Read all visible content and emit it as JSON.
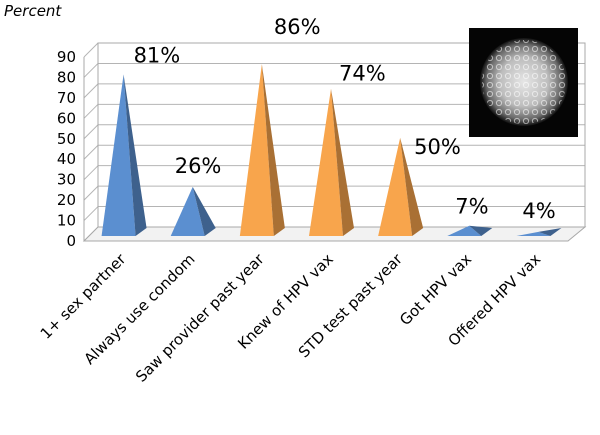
{
  "chart_data": {
    "type": "bar",
    "bar_shape": "pyramid",
    "ylabel": "Percent",
    "ylim": [
      0,
      90
    ],
    "yticks": [
      0,
      10,
      20,
      30,
      40,
      50,
      60,
      70,
      80,
      90
    ],
    "grid": true,
    "categories": [
      "1+ sex partner",
      "Always use condom",
      "Saw provider past year",
      "Knew of HPV vax",
      "STD test past year",
      "Got HPV vax",
      "Offered HPV vax"
    ],
    "values": [
      81,
      26,
      86,
      74,
      50,
      7,
      4
    ],
    "data_labels": [
      "81%",
      "26%",
      "86%",
      "74%",
      "50%",
      "7%",
      "4%"
    ],
    "colors": [
      "#5b8fd0",
      "#5b8fd0",
      "#f8a54c",
      "#f8a54c",
      "#f8a54c",
      "#5b8fd0",
      "#5b8fd0"
    ],
    "inset_image": "microscopy-cell-image"
  }
}
